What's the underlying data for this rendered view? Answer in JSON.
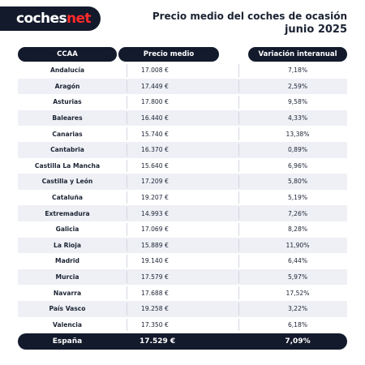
{
  "logo": {
    "part1": "coches",
    "part2": "net"
  },
  "header": {
    "title": "Precio medio del coches de ocasión",
    "subtitle": "junio 2025"
  },
  "columns": [
    "CCAA",
    "Precio medio",
    "Variación interanual"
  ],
  "rows": [
    {
      "region": "Andalucía",
      "price": "17.008 €",
      "variation": "7,18%"
    },
    {
      "region": "Aragón",
      "price": "17.449 €",
      "variation": "2,59%"
    },
    {
      "region": "Asturias",
      "price": "17.800 €",
      "variation": "9,58%"
    },
    {
      "region": "Baleares",
      "price": "16.440 €",
      "variation": "4,33%"
    },
    {
      "region": "Canarias",
      "price": "15.740 €",
      "variation": "13,38%"
    },
    {
      "region": "Cantabria",
      "price": "16.370 €",
      "variation": "0,89%"
    },
    {
      "region": "Castilla La Mancha",
      "price": "15.640 €",
      "variation": "6,96%"
    },
    {
      "region": "Castilla y León",
      "price": "17.209 €",
      "variation": "5,80%"
    },
    {
      "region": "Cataluña",
      "price": "19.207 €",
      "variation": "5,19%"
    },
    {
      "region": "Extremadura",
      "price": "14.993 €",
      "variation": "7,26%"
    },
    {
      "region": "Galicia",
      "price": "17.069 €",
      "variation": "8,28%"
    },
    {
      "region": "La Rioja",
      "price": "15.889 €",
      "variation": "11,90%"
    },
    {
      "region": "Madrid",
      "price": "19.140 €",
      "variation": "6,44%"
    },
    {
      "region": "Murcia",
      "price": "17.579 €",
      "variation": "5,97%"
    },
    {
      "region": "Navarra",
      "price": "17.688 €",
      "variation": "17,52%"
    },
    {
      "region": "País Vasco",
      "price": "19.258 €",
      "variation": "3,22%"
    },
    {
      "region": "Valencia",
      "price": "17.350 €",
      "variation": "6,18%"
    }
  ],
  "total": {
    "region": "España",
    "price": "17.529 €",
    "variation": "7,09%"
  },
  "colors": {
    "header_background": "#131a2c",
    "brand_accent": "#ff2b2b",
    "alternate_row": "#eef0f5"
  }
}
